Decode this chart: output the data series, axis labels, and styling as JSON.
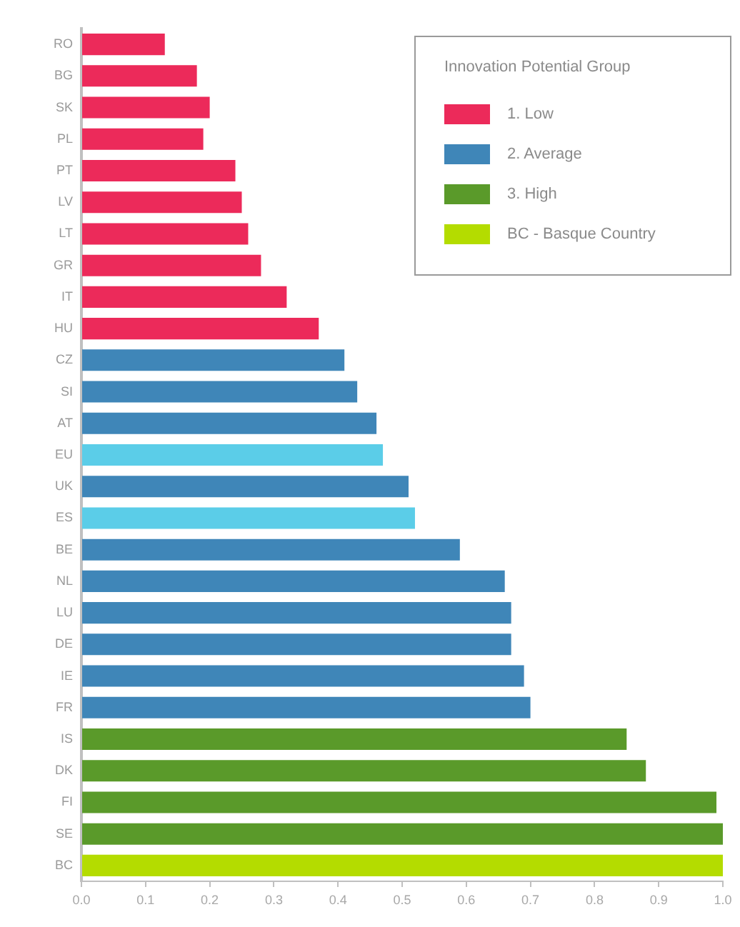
{
  "chart_data": {
    "type": "bar",
    "orientation": "horizontal",
    "legend_title": "Innovation Potential Group",
    "legend": "top right",
    "categories": [
      "RO",
      "BG",
      "SK",
      "PL",
      "PT",
      "LV",
      "LT",
      "GR",
      "IT",
      "HU",
      "CZ",
      "SI",
      "AT",
      "EU",
      "UK",
      "ES",
      "BE",
      "NL",
      "LU",
      "DE",
      "IE",
      "FR",
      "IS",
      "DK",
      "FI",
      "SE",
      "BC"
    ],
    "series": [
      {
        "name": "1. Low",
        "color": "#ec2a5a",
        "values": [
          0.13,
          0.18,
          0.2,
          0.19,
          0.24,
          0.25,
          0.26,
          0.28,
          0.32,
          0.37,
          null,
          null,
          null,
          null,
          null,
          null,
          null,
          null,
          null,
          null,
          null,
          null,
          null,
          null,
          null,
          null,
          null
        ]
      },
      {
        "name": "2. Average",
        "color": "#3f86b8",
        "values": [
          null,
          null,
          null,
          null,
          null,
          null,
          null,
          null,
          null,
          null,
          0.41,
          0.43,
          0.46,
          null,
          0.51,
          null,
          0.59,
          0.66,
          0.67,
          0.67,
          0.69,
          0.7,
          null,
          null,
          null,
          null,
          null
        ]
      },
      {
        "color": "#5bcde8",
        "values": [
          null,
          null,
          null,
          null,
          null,
          null,
          null,
          null,
          null,
          null,
          null,
          null,
          null,
          0.47,
          null,
          0.52,
          null,
          null,
          null,
          null,
          null,
          null,
          null,
          null,
          null,
          null,
          null
        ]
      },
      {
        "name": "3. High",
        "color": "#5a9a2a",
        "values": [
          null,
          null,
          null,
          null,
          null,
          null,
          null,
          null,
          null,
          null,
          null,
          null,
          null,
          null,
          null,
          null,
          null,
          null,
          null,
          null,
          null,
          null,
          0.85,
          0.88,
          0.99,
          1.0,
          null
        ]
      },
      {
        "name": "BC - Basque Country",
        "color": "#b4dc00",
        "values": [
          null,
          null,
          null,
          null,
          null,
          null,
          null,
          null,
          null,
          null,
          null,
          null,
          null,
          null,
          null,
          null,
          null,
          null,
          null,
          null,
          null,
          null,
          null,
          null,
          null,
          null,
          1.0
        ]
      }
    ],
    "xlim": [
      0,
      1
    ],
    "xticks": [
      {
        "value": 0,
        "label": "0.0"
      },
      0.1,
      0.2,
      0.3,
      0.4,
      0.5,
      0.6,
      0.7,
      0.8,
      0.9,
      {
        "value": 1,
        "label": "1.0"
      }
    ],
    "grid": false
  }
}
